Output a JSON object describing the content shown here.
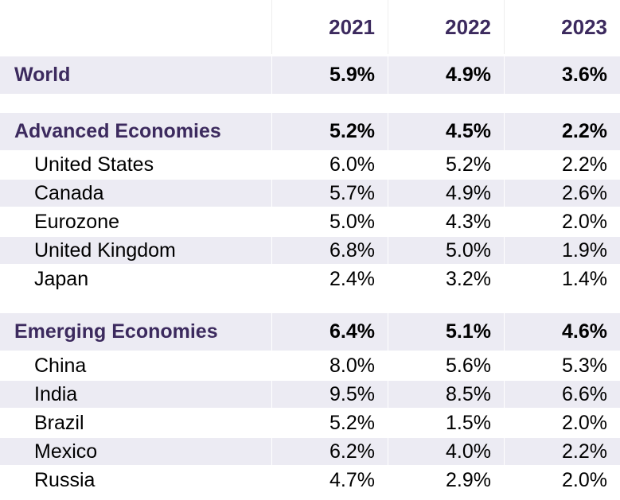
{
  "chart_data": {
    "type": "table",
    "columns": [
      "2021",
      "2022",
      "2023"
    ],
    "rows": [
      {
        "label": "World",
        "values": [
          "5.9%",
          "4.9%",
          "3.6%"
        ],
        "kind": "group"
      },
      {
        "label": "Advanced Economies",
        "values": [
          "5.2%",
          "4.5%",
          "2.2%"
        ],
        "kind": "group"
      },
      {
        "label": "United States",
        "values": [
          "6.0%",
          "5.2%",
          "2.2%"
        ],
        "kind": "sub"
      },
      {
        "label": "Canada",
        "values": [
          "5.7%",
          "4.9%",
          "2.6%"
        ],
        "kind": "sub"
      },
      {
        "label": "Eurozone",
        "values": [
          "5.0%",
          "4.3%",
          "2.0%"
        ],
        "kind": "sub"
      },
      {
        "label": "United Kingdom",
        "values": [
          "6.8%",
          "5.0%",
          "1.9%"
        ],
        "kind": "sub"
      },
      {
        "label": "Japan",
        "values": [
          "2.4%",
          "3.2%",
          "1.4%"
        ],
        "kind": "sub"
      },
      {
        "label": "Emerging Economies",
        "values": [
          "6.4%",
          "5.1%",
          "4.6%"
        ],
        "kind": "group"
      },
      {
        "label": "China",
        "values": [
          "8.0%",
          "5.6%",
          "5.3%"
        ],
        "kind": "sub"
      },
      {
        "label": "India",
        "values": [
          "9.5%",
          "8.5%",
          "6.6%"
        ],
        "kind": "sub"
      },
      {
        "label": "Brazil",
        "values": [
          "5.2%",
          "1.5%",
          "2.0%"
        ],
        "kind": "sub"
      },
      {
        "label": "Mexico",
        "values": [
          "6.2%",
          "4.0%",
          "2.2%"
        ],
        "kind": "sub"
      },
      {
        "label": "Russia",
        "values": [
          "4.7%",
          "2.9%",
          "2.0%"
        ],
        "kind": "sub"
      }
    ]
  },
  "colors": {
    "header_text": "#3c2a5e",
    "group_label": "#3c2a5e",
    "shaded_row": "#ecebf3"
  }
}
